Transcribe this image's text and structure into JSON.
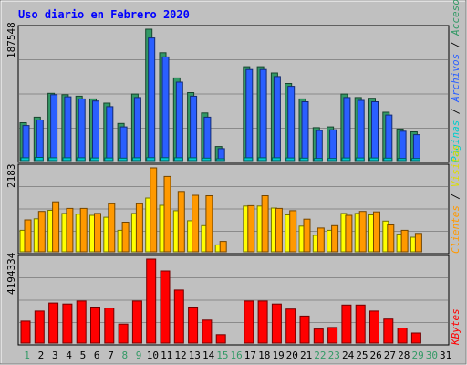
{
  "chart_data": {
    "type": "bar",
    "title": "Uso diario en Febrero 2020",
    "days": [
      "1",
      "2",
      "3",
      "4",
      "5",
      "6",
      "7",
      "8",
      "9",
      "10",
      "11",
      "12",
      "13",
      "14",
      "15",
      "16",
      "17",
      "18",
      "19",
      "20",
      "21",
      "22",
      "23",
      "24",
      "25",
      "26",
      "27",
      "28",
      "29",
      "30",
      "31"
    ],
    "weekend_days": [
      "1",
      "8",
      "15",
      "22",
      "29"
    ],
    "holiday_days": [
      "9",
      "16",
      "23",
      "30"
    ],
    "panels": [
      {
        "id": "accesses",
        "ymax_label": "187548",
        "ymax": 187548,
        "series": [
          {
            "name": "Accesos",
            "color": "#339966",
            "values": [
              54000,
              62000,
              96000,
              94000,
              92000,
              88000,
              82000,
              53000,
              95000,
              187548,
              154000,
              118000,
              97000,
              68000,
              20000,
              null,
              134000,
              134000,
              125000,
              110000,
              88000,
              47000,
              48000,
              95000,
              90000,
              89000,
              69000,
              45000,
              41000,
              null,
              null
            ]
          },
          {
            "name": "Archivos",
            "color": "#2a5fff",
            "values": [
              50000,
              58000,
              94000,
              91000,
              88000,
              85000,
              77000,
              48000,
              90000,
              175000,
              148000,
              112000,
              92000,
              62000,
              17000,
              null,
              130000,
              130000,
              120000,
              106000,
              84000,
              43000,
              44000,
              90000,
              86000,
              84000,
              65000,
              42000,
              37000,
              null,
              null
            ]
          },
          {
            "name": "Páginas",
            "color": "#00cccc",
            "values": [
              4000,
              4500,
              4000,
              4000,
              4000,
              3800,
              3800,
              3500,
              4000,
              4200,
              4200,
              4000,
              4000,
              3500,
              2500,
              null,
              4000,
              4000,
              4000,
              3800,
              3500,
              3000,
              3000,
              3800,
              3800,
              3800,
              3500,
              3000,
              3000,
              null,
              null
            ]
          }
        ]
      },
      {
        "id": "visits",
        "ymax_label": "2183",
        "ymax": 2183,
        "series": [
          {
            "name": "Visitas",
            "color": "#ffff00",
            "values": [
              560,
              860,
              1080,
              1000,
              980,
              950,
              900,
              560,
              1000,
              1400,
              1210,
              1070,
              810,
              680,
              180,
              null,
              1190,
              1190,
              1140,
              960,
              670,
              430,
              560,
              1000,
              1000,
              960,
              800,
              460,
              380,
              null,
              null
            ]
          },
          {
            "name": "Clientes",
            "color": "#ff9900",
            "values": [
              830,
              1050,
              1300,
              1130,
              1130,
              1000,
              1250,
              770,
              1250,
              2183,
              1960,
              1570,
              1470,
              1460,
              270,
              null,
              1200,
              1460,
              1130,
              1070,
              850,
              620,
              680,
              950,
              1050,
              1040,
              700,
              560,
              480,
              null,
              null
            ]
          }
        ]
      },
      {
        "id": "kbytes",
        "ymax_label": "4194334",
        "ymax": 4194334,
        "series": [
          {
            "name": "KBytes",
            "color": "#ff0000",
            "values": [
              1100000,
              1600000,
              2000000,
              1950000,
              2100000,
              1800000,
              1750000,
              950000,
              2100000,
              4194334,
              3600000,
              2650000,
              1800000,
              1150000,
              420000,
              null,
              2100000,
              2100000,
              1950000,
              1700000,
              1350000,
              700000,
              780000,
              1900000,
              1900000,
              1600000,
              1200000,
              750000,
              500000,
              null,
              null
            ]
          }
        ]
      }
    ]
  },
  "legend": {
    "top": {
      "accesos": "Accesos",
      "sep": "/",
      "archivos": "Archivos",
      "paginas": "Páginas"
    },
    "middle": {
      "visitas": "Visitas",
      "sep": "/",
      "clientes": "Clientes"
    },
    "bottom": {
      "kbytes": "KBytes"
    }
  },
  "colors": {
    "background": "#c0c0c0",
    "plot_area": "#c0c0c0",
    "title": "#0000ff",
    "weekday_label": "#000000",
    "weekend_label": "#339966"
  }
}
